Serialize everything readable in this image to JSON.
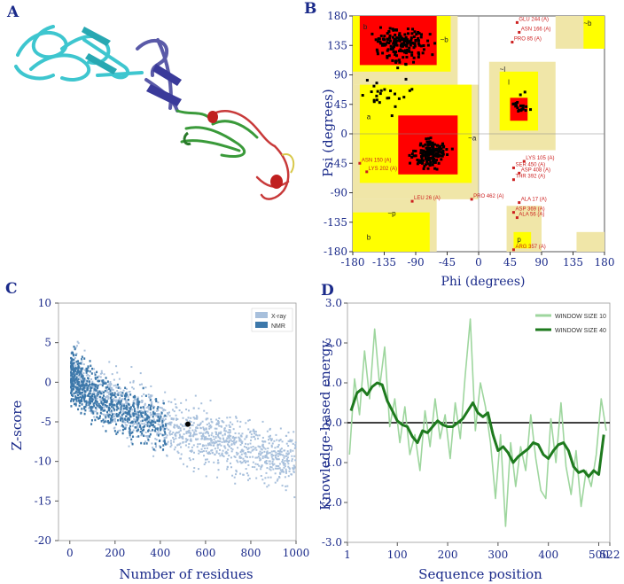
{
  "panel_labels": {
    "a": "A",
    "b": "B",
    "c": "C",
    "d": "D"
  },
  "colors": {
    "axis_text": "#1a2a8a",
    "helix_cyan": "#3ec6cf",
    "helix_purple": "#5a5aa8",
    "helix_green": "#3a9a3a",
    "helix_red": "#c83a3a",
    "rama_core": "#ff0000",
    "rama_allowed": "#ffff00",
    "rama_generous": "#f0e6a8",
    "xray": "#a8c0dc",
    "nmr": "#3d78aa",
    "window10": "#9ed69e",
    "window40": "#1e7a1e"
  },
  "chart_data": [
    {
      "id": "B",
      "type": "scatter",
      "title": "",
      "xlabel": "Phi (degrees)",
      "ylabel": "Psi (degrees)",
      "xlim": [
        -180,
        180
      ],
      "ylim": [
        -180,
        180
      ],
      "x_ticks": [
        "-180",
        "-135",
        "-90",
        "-45",
        "0",
        "45",
        "90",
        "135",
        "180"
      ],
      "y_ticks": [
        "180",
        "135",
        "90",
        "45",
        "0",
        "-45",
        "-90",
        "-135",
        "-180"
      ],
      "region_labels": [
        "b",
        "a",
        "l",
        "~b",
        "~a",
        "~l",
        "p",
        "b",
        "~b",
        "~p"
      ],
      "outlier_labels": [
        {
          "text": "GLU 244 (A)",
          "phi": 55,
          "psi": 170
        },
        {
          "text": "ASN 166 (A)",
          "phi": 58,
          "psi": 155
        },
        {
          "text": "PRO 85 (A)",
          "phi": 48,
          "psi": 140
        },
        {
          "text": "LYS 105 (A)",
          "phi": 65,
          "psi": -42
        },
        {
          "text": "SER 450 (A)",
          "phi": 50,
          "psi": -52
        },
        {
          "text": "ASP 408 (A)",
          "phi": 58,
          "psi": -60
        },
        {
          "text": "THR 392 (A)",
          "phi": 50,
          "psi": -70
        },
        {
          "text": "ALA 17 (A)",
          "phi": 58,
          "psi": -105
        },
        {
          "text": "ASP 369 (A)",
          "phi": 50,
          "psi": -120
        },
        {
          "text": "ALA 56 (A)",
          "phi": 55,
          "psi": -128
        },
        {
          "text": "ARG 357 (A)",
          "phi": 50,
          "psi": -177
        },
        {
          "text": "PRO 462 (A)",
          "phi": -10,
          "psi": -100
        },
        {
          "text": "LEU 26 (A)",
          "phi": -95,
          "psi": -103
        },
        {
          "text": "LYS 202 (A)",
          "phi": -160,
          "psi": -58
        },
        {
          "text": "ASN 150 (A)",
          "phi": -170,
          "psi": -45
        }
      ]
    },
    {
      "id": "C",
      "type": "scatter",
      "title": "",
      "xlabel": "Number of residues",
      "ylabel": "Z-score",
      "xlim": [
        -50,
        1000
      ],
      "ylim": [
        -20,
        10
      ],
      "x_ticks": [
        "0",
        "200",
        "400",
        "600",
        "800",
        "1000"
      ],
      "y_ticks": [
        "10",
        "5",
        "0",
        "-5",
        "-10",
        "-15",
        "-20"
      ],
      "legend": [
        "X-ray",
        "NMR"
      ],
      "highlight_point": {
        "x": 522,
        "y": -5.3
      }
    },
    {
      "id": "D",
      "type": "line",
      "title": "",
      "xlabel": "Sequence position",
      "ylabel": "Knowledge-based energy",
      "xlim": [
        1,
        522
      ],
      "ylim": [
        -3.0,
        3.0
      ],
      "x_ticks": [
        "1",
        "100",
        "200",
        "300",
        "400",
        "500",
        "522"
      ],
      "y_ticks": [
        "3.0",
        "2.0",
        "1.0",
        "0.0",
        "-1.0",
        "-2.0",
        "-3.0"
      ],
      "legend": [
        "WINDOW SIZE 10",
        "WINDOW SIZE 40"
      ],
      "series": [
        {
          "name": "WINDOW SIZE 40",
          "x": [
            8,
            20,
            30,
            40,
            50,
            60,
            70,
            80,
            90,
            100,
            110,
            120,
            130,
            140,
            150,
            160,
            170,
            180,
            190,
            200,
            210,
            220,
            230,
            240,
            250,
            260,
            270,
            280,
            290,
            300,
            310,
            320,
            330,
            340,
            350,
            360,
            370,
            380,
            390,
            400,
            410,
            420,
            430,
            440,
            450,
            460,
            470,
            480,
            490,
            500,
            510
          ],
          "y": [
            0.3,
            0.75,
            0.85,
            0.7,
            0.9,
            1.0,
            0.95,
            0.55,
            0.3,
            0.05,
            -0.05,
            -0.1,
            -0.35,
            -0.5,
            -0.2,
            -0.25,
            -0.1,
            0.05,
            -0.05,
            -0.1,
            -0.1,
            0.0,
            0.1,
            0.3,
            0.5,
            0.25,
            0.15,
            0.25,
            -0.3,
            -0.7,
            -0.6,
            -0.75,
            -1.0,
            -0.85,
            -0.75,
            -0.65,
            -0.5,
            -0.55,
            -0.8,
            -0.9,
            -0.7,
            -0.55,
            -0.5,
            -0.7,
            -1.1,
            -1.25,
            -1.2,
            -1.35,
            -1.2,
            -1.3,
            -0.3
          ]
        },
        {
          "name": "WINDOW SIZE 10",
          "x": [
            5,
            15,
            25,
            35,
            45,
            55,
            65,
            75,
            85,
            95,
            105,
            115,
            125,
            135,
            145,
            155,
            165,
            175,
            185,
            195,
            205,
            215,
            225,
            235,
            245,
            255,
            265,
            275,
            285,
            295,
            305,
            315,
            325,
            335,
            345,
            355,
            365,
            375,
            385,
            395,
            405,
            415,
            425,
            435,
            445,
            455,
            465,
            475,
            485,
            495,
            505,
            515
          ],
          "y": [
            -0.8,
            1.1,
            0.2,
            1.8,
            0.6,
            2.35,
            0.9,
            1.9,
            -0.1,
            0.6,
            -0.5,
            0.4,
            -0.8,
            -0.3,
            -1.2,
            0.3,
            -0.6,
            0.6,
            -0.4,
            0.2,
            -0.9,
            0.5,
            -0.4,
            1.2,
            2.6,
            -0.2,
            1.0,
            0.4,
            -0.5,
            -1.9,
            -0.3,
            -2.6,
            -0.5,
            -1.6,
            -0.6,
            -1.2,
            0.2,
            -0.9,
            -1.7,
            -1.9,
            0.1,
            -1.0,
            0.5,
            -1.1,
            -1.8,
            -0.7,
            -2.1,
            -1.2,
            -1.6,
            -0.8,
            0.6,
            -0.2
          ]
        }
      ]
    }
  ]
}
